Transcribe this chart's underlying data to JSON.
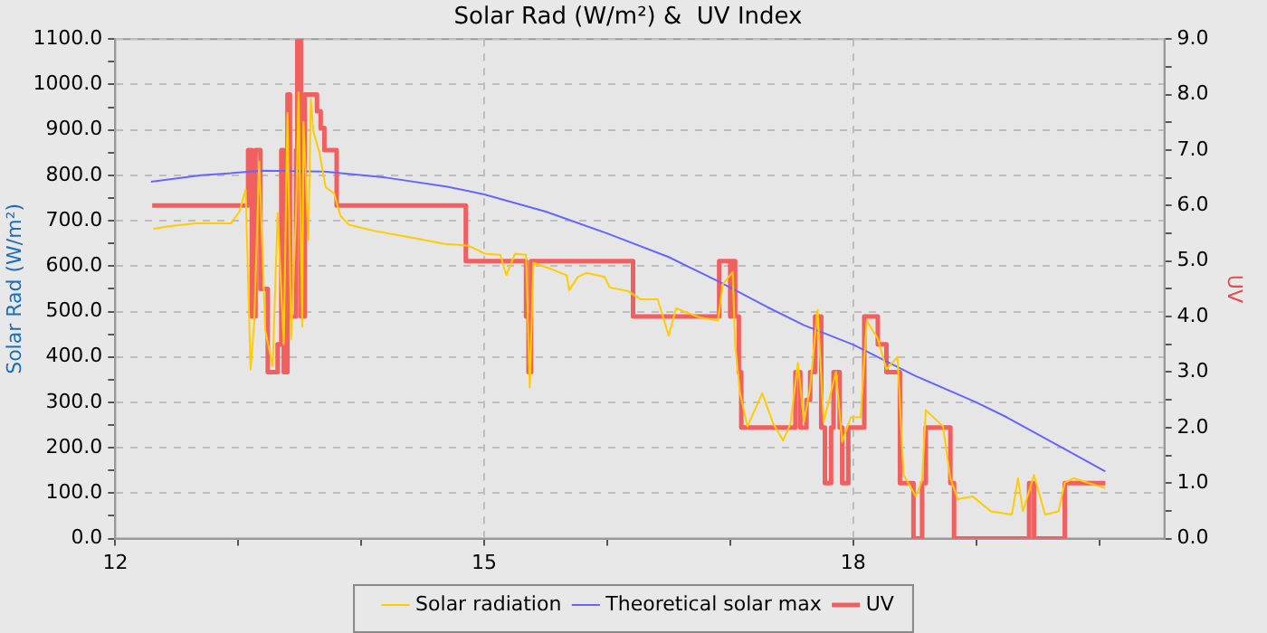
{
  "chart_data": {
    "type": "line",
    "title": "Solar Rad (W/m²) &  UV Index",
    "ylabel": "Solar Rad (W/m²)",
    "y2label": "UV",
    "xlim": [
      12,
      20.53
    ],
    "xticks": [
      {
        "value": 12,
        "label": "12"
      },
      {
        "value": 13,
        "label": null
      },
      {
        "value": 14,
        "label": null
      },
      {
        "value": 15,
        "label": "15"
      },
      {
        "value": 16,
        "label": null
      },
      {
        "value": 17,
        "label": null
      },
      {
        "value": 18,
        "label": "18"
      },
      {
        "value": 19,
        "label": null
      },
      {
        "value": 20,
        "label": null
      }
    ],
    "ylim": [
      0,
      1100
    ],
    "yticks": [
      {
        "value": 0,
        "label": "0.0"
      },
      {
        "value": 50,
        "label": null
      },
      {
        "value": 100,
        "label": "100.0"
      },
      {
        "value": 150,
        "label": null
      },
      {
        "value": 200,
        "label": "200.0"
      },
      {
        "value": 250,
        "label": null
      },
      {
        "value": 300,
        "label": "300.0"
      },
      {
        "value": 350,
        "label": null
      },
      {
        "value": 400,
        "label": "400.0"
      },
      {
        "value": 450,
        "label": null
      },
      {
        "value": 500,
        "label": "500.0"
      },
      {
        "value": 550,
        "label": null
      },
      {
        "value": 600,
        "label": "600.0"
      },
      {
        "value": 650,
        "label": null
      },
      {
        "value": 700,
        "label": "700.0"
      },
      {
        "value": 750,
        "label": null
      },
      {
        "value": 800,
        "label": "800.0"
      },
      {
        "value": 850,
        "label": null
      },
      {
        "value": 900,
        "label": "900.0"
      },
      {
        "value": 950,
        "label": null
      },
      {
        "value": 1000,
        "label": "1000.0"
      },
      {
        "value": 1050,
        "label": null
      },
      {
        "value": 1100,
        "label": "1100.0"
      }
    ],
    "y2lim": [
      0,
      9
    ],
    "y2ticks": [
      {
        "value": 0,
        "label": "0.0"
      },
      {
        "value": 0.5,
        "label": null
      },
      {
        "value": 1,
        "label": "1.0"
      },
      {
        "value": 1.5,
        "label": null
      },
      {
        "value": 2,
        "label": "2.0"
      },
      {
        "value": 2.5,
        "label": null
      },
      {
        "value": 3,
        "label": "3.0"
      },
      {
        "value": 3.5,
        "label": null
      },
      {
        "value": 4,
        "label": "4.0"
      },
      {
        "value": 4.5,
        "label": null
      },
      {
        "value": 5,
        "label": "5.0"
      },
      {
        "value": 5.5,
        "label": null
      },
      {
        "value": 6,
        "label": "6.0"
      },
      {
        "value": 6.5,
        "label": null
      },
      {
        "value": 7,
        "label": "7.0"
      },
      {
        "value": 7.5,
        "label": null
      },
      {
        "value": 8,
        "label": "8.0"
      },
      {
        "value": 8.5,
        "label": null
      },
      {
        "value": 9,
        "label": "9.0"
      }
    ],
    "grid": true,
    "legend": "bottom",
    "marker": "none",
    "series": [
      {
        "name": "Solar radiation",
        "color": "#ffcc00",
        "x": [
          12.31,
          12.45,
          12.65,
          12.94,
          13.01,
          13.06,
          13.1,
          13.13,
          13.17,
          13.2,
          13.22,
          13.28,
          13.32,
          13.37,
          13.4,
          13.43,
          13.47,
          13.49,
          13.52,
          13.53,
          13.57,
          13.59,
          13.61,
          13.66,
          13.71,
          13.78,
          13.83,
          13.9,
          14.1,
          14.39,
          14.68,
          14.87,
          15.01,
          15.13,
          15.18,
          15.25,
          15.34,
          15.37,
          15.4,
          15.55,
          15.67,
          15.69,
          15.76,
          15.83,
          15.98,
          16.02,
          16.17,
          16.27,
          16.41,
          16.5,
          16.56,
          16.75,
          16.9,
          16.94,
          17.02,
          17.04,
          17.08,
          17.14,
          17.26,
          17.35,
          17.43,
          17.49,
          17.55,
          17.6,
          17.65,
          17.71,
          17.76,
          17.86,
          17.91,
          17.98,
          18.06,
          18.11,
          18.2,
          18.27,
          18.36,
          18.41,
          18.51,
          18.56,
          18.59,
          18.73,
          18.79,
          18.85,
          18.97,
          19.12,
          19.29,
          19.34,
          19.38,
          19.47,
          19.56,
          19.67,
          19.72,
          19.79,
          20.05
        ],
        "values": [
          682,
          688,
          694,
          694,
          720,
          769,
          372,
          478,
          830,
          611,
          458,
          379,
          717,
          428,
          937,
          439,
          718,
          983,
          466,
          917,
          658,
          968,
          897,
          850,
          774,
          760,
          711,
          691,
          678,
          664,
          649,
          645,
          627,
          625,
          580,
          627,
          625,
          333,
          607,
          593,
          580,
          547,
          576,
          585,
          576,
          553,
          545,
          527,
          527,
          447,
          507,
          487,
          480,
          560,
          587,
          427,
          320,
          247,
          320,
          253,
          216,
          253,
          387,
          257,
          333,
          504,
          257,
          367,
          213,
          267,
          267,
          480,
          440,
          373,
          400,
          140,
          93,
          128,
          283,
          247,
          133,
          87,
          93,
          60,
          53,
          133,
          60,
          140,
          53,
          60,
          123,
          133,
          111
        ]
      },
      {
        "name": "Theoretical solar max",
        "color": "#6666ff",
        "x": [
          12.29,
          12.7,
          13.2,
          13.7,
          14.2,
          14.7,
          15,
          15.5,
          16,
          16.5,
          16.9,
          17.3,
          17.6,
          18,
          18.5,
          19,
          19.25,
          19.7,
          20.05
        ],
        "values": [
          786,
          800,
          810,
          808,
          795,
          775,
          758,
          720,
          672,
          620,
          567,
          510,
          470,
          427,
          359,
          300,
          267,
          200,
          148
        ]
      },
      {
        "name": "UV",
        "color": "#f06060",
        "type": "step",
        "axis": "y2",
        "x": [
          12.3,
          13.08,
          13.11,
          13.14,
          13.18,
          13.24,
          13.32,
          13.35,
          13.37,
          13.4,
          13.42,
          13.47,
          13.48,
          13.51,
          13.54,
          13.64,
          13.67,
          13.7,
          13.8,
          14.85,
          15.34,
          15.36,
          15.38,
          16.21,
          16.91,
          17.0,
          17.01,
          17.04,
          17.07,
          17.09,
          17.53,
          17.57,
          17.62,
          17.65,
          17.69,
          17.74,
          17.77,
          17.82,
          17.84,
          17.89,
          17.91,
          17.96,
          18.09,
          18.2,
          18.27,
          18.38,
          18.49,
          18.56,
          18.59,
          18.79,
          18.82,
          19.43,
          19.47,
          19.72,
          20.05
        ],
        "values": [
          6.0,
          7.0,
          4.0,
          7.0,
          4.5,
          3.0,
          3.5,
          7.0,
          3.0,
          8.0,
          4.0,
          7.0,
          9.0,
          4.0,
          8.0,
          7.7,
          7.4,
          7.0,
          6.0,
          5.0,
          4.0,
          3.0,
          5.0,
          4.0,
          5.0,
          4.0,
          5.0,
          4.0,
          3.0,
          2.0,
          3.0,
          2.0,
          2.5,
          3.0,
          4.0,
          2.0,
          1.0,
          2.0,
          3.0,
          2.0,
          1.0,
          2.0,
          4.0,
          3.5,
          3.0,
          1.0,
          0.0,
          1.0,
          2.0,
          1.0,
          0.0,
          1.0,
          0.0,
          1.0,
          1.0
        ]
      }
    ]
  }
}
